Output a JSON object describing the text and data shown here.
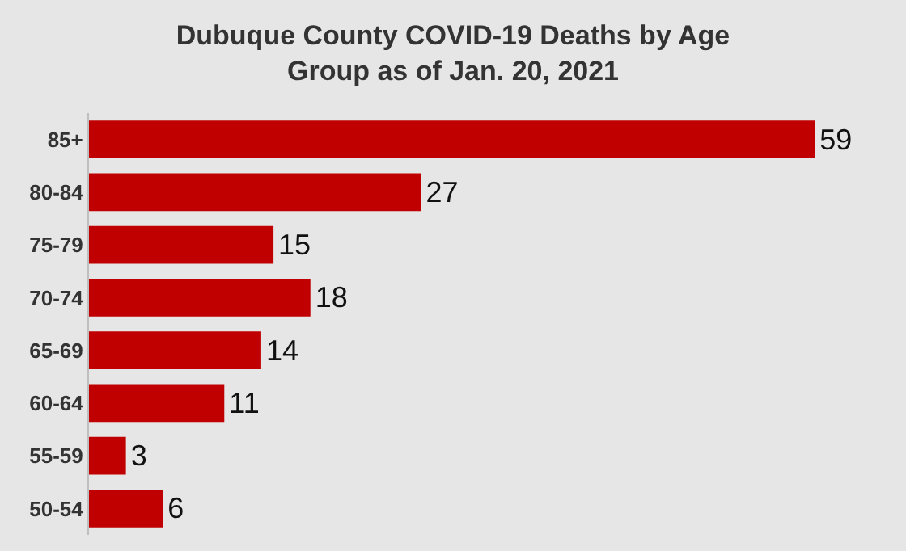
{
  "chart_data": {
    "type": "bar",
    "orientation": "horizontal",
    "title": "Dubuque County COVID-19 Deaths by Age Group as of Jan. 20, 2021",
    "categories": [
      "85+",
      "80-84",
      "75-79",
      "70-74",
      "65-69",
      "60-64",
      "55-59",
      "50-54"
    ],
    "values": [
      59,
      27,
      15,
      18,
      14,
      11,
      3,
      6
    ],
    "color": "#c00000",
    "data_labels": true,
    "grid": false,
    "legend": false
  }
}
